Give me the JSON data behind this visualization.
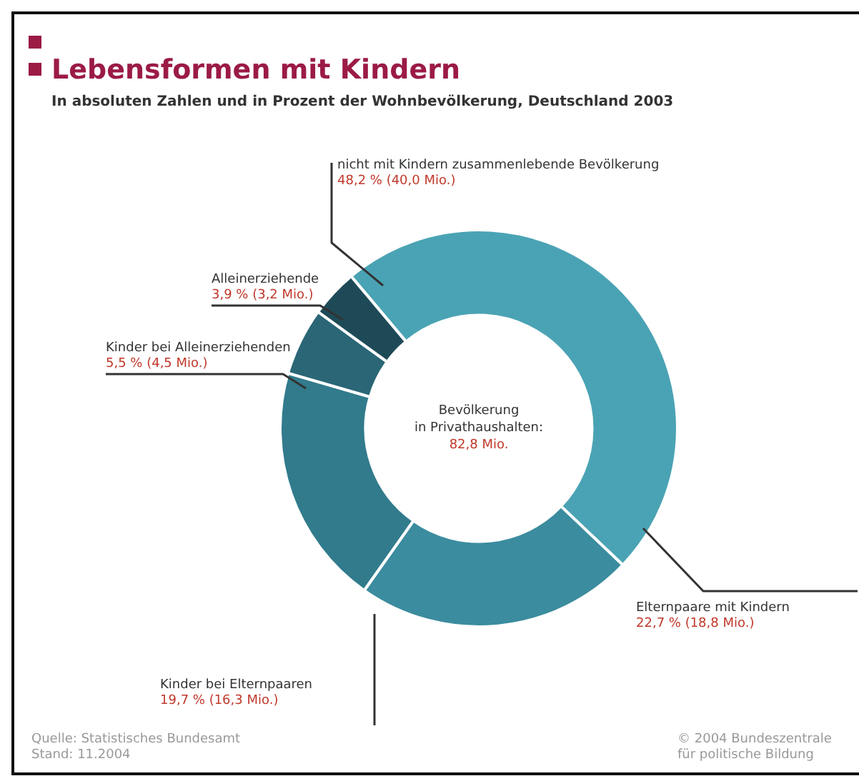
{
  "chart_data": {
    "type": "donut",
    "title": "Lebensformen mit Kindern",
    "subtitle": "In absoluten Zahlen und in Prozent der Wohnbevölkerung, Deutschland 2003",
    "categories": [
      "nicht mit Kindern zusammenlebende Bevölkerung",
      "Elternpaare mit Kindern",
      "Kinder bei Elternpaaren",
      "Kinder bei Alleinerziehenden",
      "Alleinerziehende"
    ],
    "values": [
      48.2,
      22.7,
      19.7,
      5.5,
      3.9
    ],
    "value_labels": [
      "48,2 % (40,0 Mio.)",
      "22,7 % (18,8 Mio.)",
      "19,7 % (16,3 Mio.)",
      "5,5 % (4,5 Mio.)",
      "3,9 % (3,2 Mio.)"
    ],
    "colors": [
      "#4aa3b4",
      "#3b8c9e",
      "#317b8c",
      "#2a6676",
      "#1e4a57"
    ],
    "annotations": [
      "Bevölkerung\nin Privathaushalten:\n82,8 Mio.",
      "Quelle: Statistisches Bundesamt\nStand: 11.2004",
      "© 2004 Bundeszentrale\nfür politische Bildung"
    ],
    "legend": false
  }
}
